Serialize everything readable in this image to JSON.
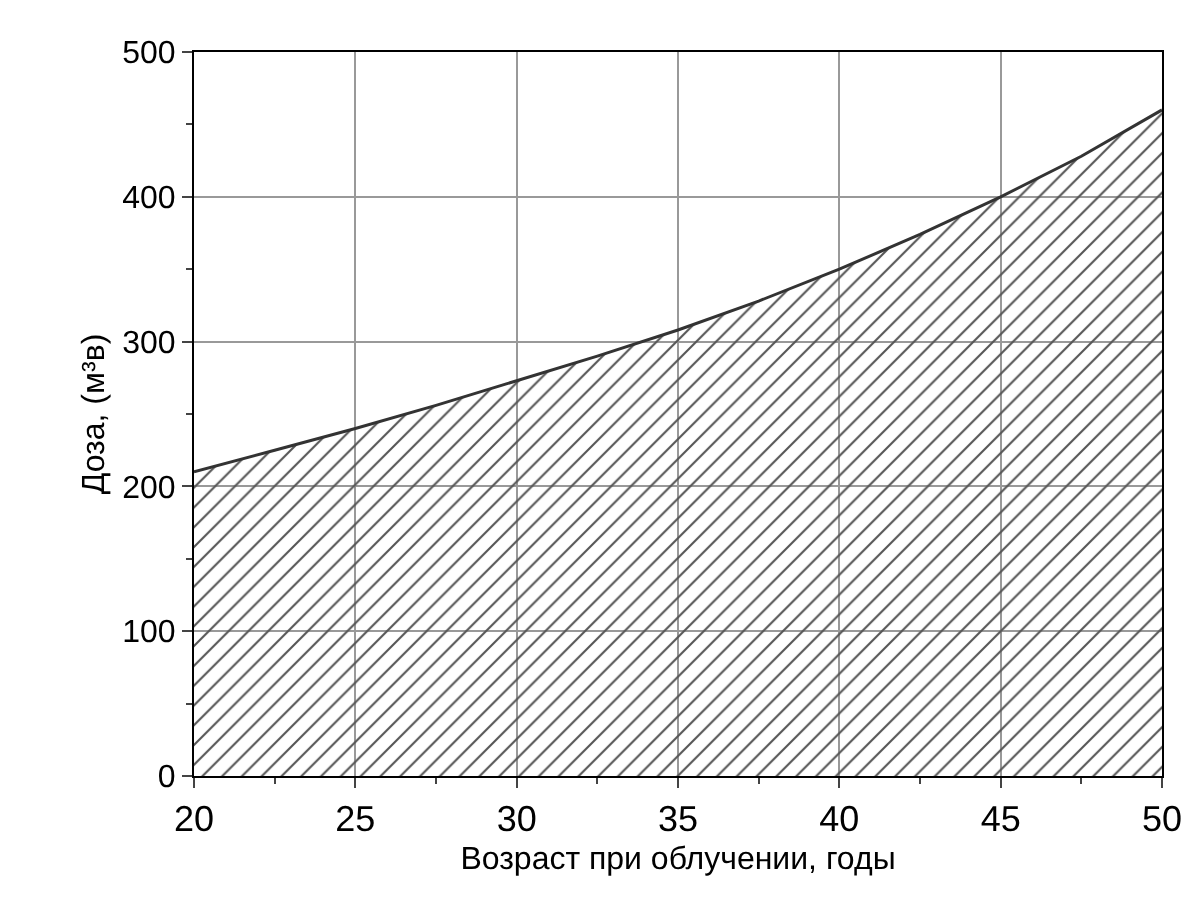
{
  "chart_data": {
    "type": "area",
    "xlabel": "Возраст при облучении, годы",
    "ylabel": "Доза, (м³в)",
    "x": [
      20,
      22.5,
      25,
      27.5,
      30,
      32.5,
      35,
      37.5,
      40,
      42.5,
      45,
      47.5,
      50
    ],
    "series": [
      {
        "color": "#333333",
        "values": [
          210,
          225,
          240,
          256,
          273,
          290,
          308,
          328,
          350,
          374,
          400,
          428,
          460
        ]
      }
    ],
    "xlim": [
      20,
      50
    ],
    "xticks": [
      20,
      25,
      30,
      35,
      40,
      45,
      50
    ],
    "ylim": [
      0,
      500
    ],
    "yticks": [
      0,
      100,
      200,
      300,
      400,
      500
    ],
    "grid": true,
    "marker": "none",
    "line_style": "solid"
  }
}
